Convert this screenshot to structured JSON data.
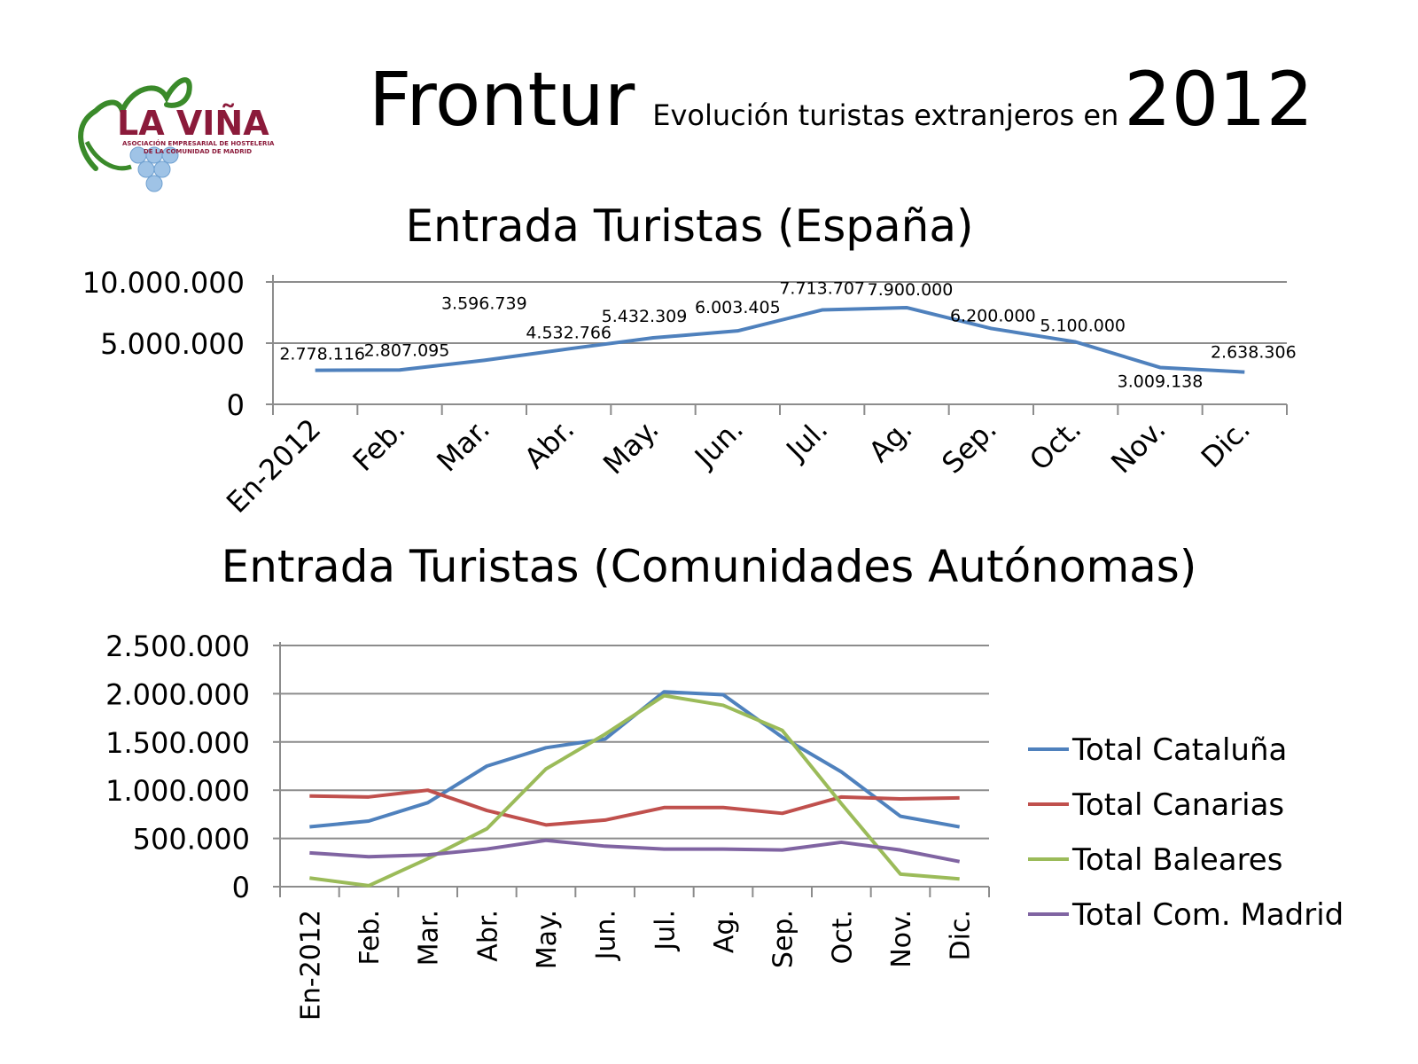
{
  "header": {
    "title": "Frontur",
    "subtitle": "Evolución turistas extranjeros en",
    "year": "2012"
  },
  "logo": {
    "text": "LA VIÑA",
    "tagline_1": "ASOCIACIÓN EMPRESARIAL DE HOSTELERIA",
    "tagline_2": "DE LA COMUNIDAD DE MADRID",
    "colors": {
      "text": "#8b1a3a",
      "leaf": "#3a8a2a",
      "grapes": "#9fc3e6"
    }
  },
  "chart_data": [
    {
      "type": "line",
      "title": "Entrada Turistas (España)",
      "categories": [
        "En-2012",
        "Feb.",
        "Mar.",
        "Abr.",
        "May.",
        "Jun.",
        "Jul.",
        "Ag.",
        "Sep.",
        "Oct.",
        "Nov.",
        "Dic."
      ],
      "series": [
        {
          "values": [
            2778116,
            2807095,
            3596739,
            4532766,
            5432309,
            6003405,
            7713707,
            7900000,
            6200000,
            5100000,
            3009138,
            2638306
          ],
          "color": "#4f81bd"
        }
      ],
      "data_labels": [
        "2.778.116",
        "2.807.095",
        "3.596.739",
        "4.532.766",
        "5.432.309",
        "6.003.405",
        "7.713.707",
        "7.900.000",
        "6.200.000",
        "5.100.000",
        "3.009.138",
        "2.638.306"
      ],
      "y_ticks": [
        "0",
        "5.000.000",
        "10.000.000"
      ],
      "ylim": [
        0,
        10000000
      ],
      "grid": true,
      "legend": "none"
    },
    {
      "type": "line",
      "title": "Entrada Turistas (Comunidades Autónomas)",
      "categories": [
        "En-2012",
        "Feb.",
        "Mar.",
        "Abr.",
        "May.",
        "Jun.",
        "Jul.",
        "Ag.",
        "Sep.",
        "Oct.",
        "Nov.",
        "Dic."
      ],
      "series": [
        {
          "name": "Total Cataluña",
          "color": "#4f81bd",
          "values": [
            620000,
            680000,
            870000,
            1250000,
            1440000,
            1530000,
            2020000,
            1990000,
            1550000,
            1190000,
            730000,
            620000
          ]
        },
        {
          "name": "Total Canarias",
          "color": "#c0504d",
          "values": [
            940000,
            930000,
            1000000,
            790000,
            640000,
            690000,
            820000,
            820000,
            760000,
            930000,
            910000,
            920000
          ]
        },
        {
          "name": "Total Baleares",
          "color": "#9bbb59",
          "values": [
            90000,
            10000,
            290000,
            600000,
            1220000,
            1580000,
            1980000,
            1880000,
            1620000,
            860000,
            130000,
            80000
          ]
        },
        {
          "name": "Total Com. Madrid",
          "color": "#8064a2",
          "values": [
            350000,
            310000,
            330000,
            390000,
            480000,
            420000,
            390000,
            390000,
            380000,
            460000,
            380000,
            260000
          ]
        }
      ],
      "y_ticks": [
        "0",
        "500.000",
        "1.000.000",
        "1.500.000",
        "2.000.000",
        "2.500.000"
      ],
      "ylim": [
        0,
        2500000
      ],
      "grid": true,
      "legend": "right"
    }
  ]
}
